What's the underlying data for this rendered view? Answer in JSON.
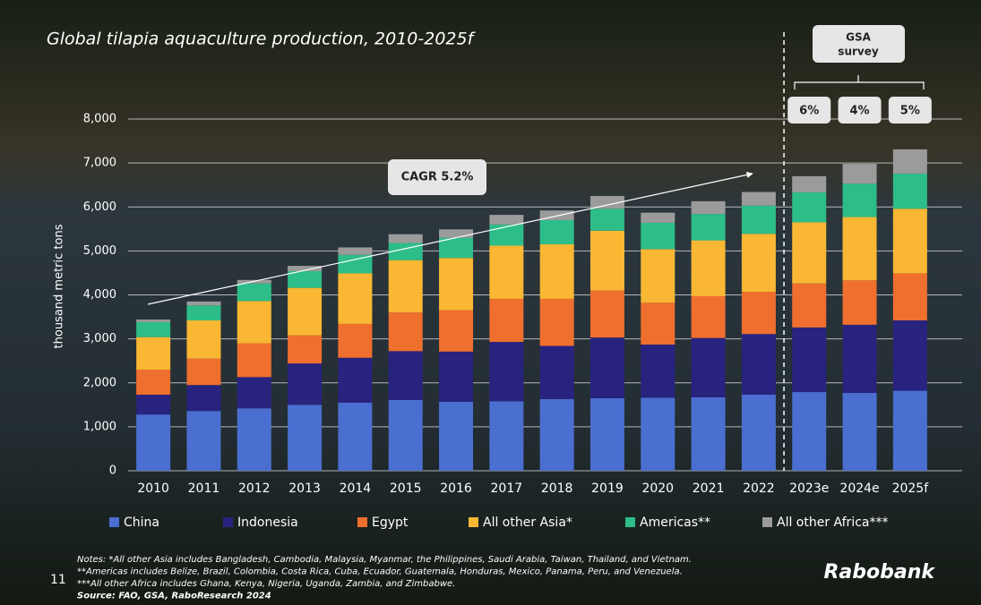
{
  "chart_data": {
    "type": "stacked-bar",
    "title": "Global tilapia aquaculture production, 2010-2025f",
    "y_label": "thousand metric tons",
    "categories": [
      "2010",
      "2011",
      "2012",
      "2013",
      "2014",
      "2015",
      "2016",
      "2017",
      "2018",
      "2019",
      "2020",
      "2021",
      "2022",
      "2023e",
      "2024e",
      "2025f"
    ],
    "series": [
      {
        "name": "China",
        "color": "#4a6fd0",
        "values": [
          1280,
          1360,
          1420,
          1500,
          1550,
          1610,
          1570,
          1580,
          1630,
          1650,
          1660,
          1670,
          1730,
          1790,
          1770,
          1820
        ]
      },
      {
        "name": "Indonesia",
        "color": "#28237f",
        "values": [
          450,
          590,
          710,
          940,
          1020,
          1110,
          1140,
          1350,
          1210,
          1380,
          1210,
          1350,
          1380,
          1470,
          1550,
          1600
        ]
      },
      {
        "name": "Egypt",
        "color": "#ef6f2e",
        "values": [
          570,
          600,
          770,
          640,
          770,
          880,
          940,
          980,
          1070,
          1070,
          950,
          950,
          960,
          1000,
          1010,
          1070
        ]
      },
      {
        "name": "All other Asia*",
        "color": "#f9b733",
        "values": [
          740,
          870,
          960,
          1080,
          1150,
          1190,
          1190,
          1210,
          1240,
          1360,
          1220,
          1270,
          1320,
          1390,
          1440,
          1470
        ]
      },
      {
        "name": "Americas**",
        "color": "#2dbd88",
        "values": [
          340,
          340,
          400,
          380,
          420,
          390,
          460,
          480,
          550,
          500,
          600,
          600,
          640,
          680,
          760,
          800
        ]
      },
      {
        "name": "All other Africa***",
        "color": "#9b9b9b",
        "values": [
          60,
          90,
          80,
          120,
          170,
          200,
          190,
          220,
          220,
          290,
          230,
          290,
          310,
          370,
          450,
          550
        ]
      }
    ],
    "ylim": [
      0,
      8000
    ],
    "yticks": [
      0,
      {
        "value": 1000,
        "label": "1,000"
      },
      {
        "value": 2000,
        "label": "2,000"
      },
      {
        "value": 3000,
        "label": "3,000"
      },
      {
        "value": 4000,
        "label": "4,000"
      },
      {
        "value": 5000,
        "label": "5,000"
      },
      {
        "value": 6000,
        "label": "6,000"
      },
      {
        "value": 7000,
        "label": "7,000"
      },
      {
        "value": 8000,
        "label": "8,000"
      }
    ],
    "grid": true,
    "annotations": {
      "cagr": "CAGR 5.2%",
      "survey_label": [
        "GSA",
        "survey"
      ],
      "survey_growth": [
        "6%",
        "4%",
        "5%"
      ]
    },
    "notes": [
      "Notes: *All other Asia includes Bangladesh, Cambodia, Malaysia, Myanmar, the Philippines, Saudi Arabia, Taiwan, Thailand, and Vietnam.",
      "**Americas includes Belize, Brazil, Colombia, Costa Rica, Cuba, Ecuador, Guatemala, Honduras, Mexico, Panama, Peru, and Venezuela.",
      "***All other Africa includes Ghana, Kenya, Nigeria, Uganda, Zambia, and Zimbabwe.",
      "Source: FAO, GSA, RaboResearch 2024"
    ]
  },
  "page_number": "11",
  "logo": "Rabobank"
}
